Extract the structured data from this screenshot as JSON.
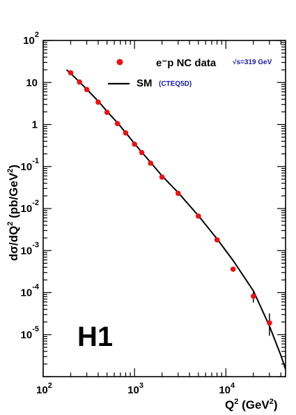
{
  "chart_data": {
    "type": "scatter",
    "scale": {
      "x": "log",
      "y": "log"
    },
    "xlim": [
      100,
      45000
    ],
    "ylim": [
      1e-06,
      100
    ],
    "x_tick_labels": [
      {
        "base": "10",
        "exp": "2",
        "value": 100
      },
      {
        "base": "10",
        "exp": "3",
        "value": 1000
      },
      {
        "base": "10",
        "exp": "4",
        "value": 10000
      }
    ],
    "y_tick_labels": [
      {
        "base": "10",
        "exp": "2",
        "value": 100
      },
      {
        "base": "10",
        "exp": "",
        "value": 10
      },
      {
        "base": "1",
        "exp": "",
        "value": 1
      },
      {
        "base": "10",
        "exp": "-1",
        "value": 0.1
      },
      {
        "base": "10",
        "exp": "-2",
        "value": 0.01
      },
      {
        "base": "10",
        "exp": "-3",
        "value": 0.001
      },
      {
        "base": "10",
        "exp": "-4",
        "value": 0.0001
      },
      {
        "base": "10",
        "exp": "-5",
        "value": 1e-05
      }
    ],
    "xlabel": {
      "main": "Q",
      "sup1": "2",
      "mid": " (GeV",
      "sup2": "2",
      "end": ")"
    },
    "ylabel": {
      "main": "dσ/dQ",
      "sup1": "2",
      "mid": " (pb/GeV",
      "sup2": "2",
      "end": ")"
    },
    "legend": {
      "data_label": "e⁻p NC data",
      "energy_label": "√s=319 GeV",
      "model_label": "SM",
      "model_sub": "(CTEQ5D)"
    },
    "experiment_label": "H1",
    "colors": {
      "data": "#ee1111",
      "model": "#000000",
      "energy_text": "#1a1aa6",
      "axes": "#000000"
    },
    "series": [
      {
        "name": "e⁻p NC data",
        "kind": "points",
        "x": [
          200,
          250,
          300,
          400,
          500,
          650,
          800,
          1000,
          1200,
          1500,
          2000,
          3000,
          5000,
          8000,
          12000,
          20000,
          30000
        ],
        "y": [
          17.0,
          10.2,
          6.8,
          3.4,
          1.95,
          1.05,
          0.63,
          0.34,
          0.215,
          0.12,
          0.056,
          0.023,
          0.0066,
          0.0018,
          0.00036,
          8.2e-05,
          1.9e-05
        ],
        "err_low": [
          0,
          0,
          0,
          0,
          0,
          0,
          0,
          0,
          0,
          0,
          0,
          0,
          0,
          0,
          3e-05,
          2.4e-05,
          9.6e-06
        ],
        "err_high": [
          0,
          0,
          0,
          0,
          0,
          0,
          0,
          0,
          0,
          0,
          0,
          0,
          0,
          0,
          3e-05,
          2.8e-05,
          1.3e-05
        ]
      },
      {
        "name": "SM",
        "kind": "line",
        "x": [
          180,
          200,
          250,
          300,
          400,
          500,
          650,
          800,
          1000,
          1200,
          1500,
          2000,
          3000,
          5000,
          8000,
          12000,
          20000,
          30000,
          40000,
          45000
        ],
        "y": [
          20.0,
          16.5,
          10.2,
          6.9,
          3.6,
          2.05,
          1.1,
          0.64,
          0.35,
          0.22,
          0.125,
          0.06,
          0.024,
          0.0068,
          0.0019,
          0.00058,
          0.00011,
          1.6e-05,
          3.2e-06,
          1.5e-06
        ]
      }
    ]
  }
}
